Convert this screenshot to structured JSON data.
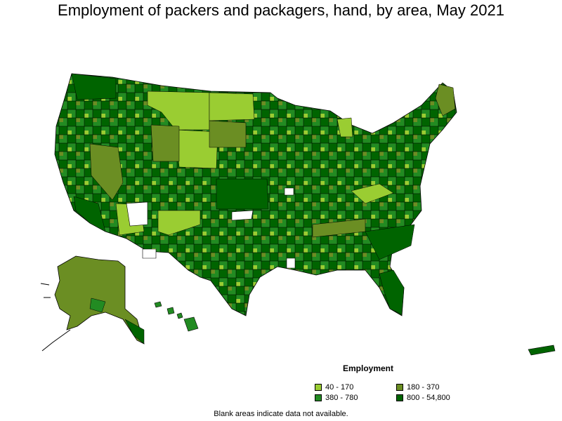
{
  "title": "Employment of packers and packagers, hand, by area, May 2021",
  "legend": {
    "title": "Employment",
    "items": [
      {
        "label": "40 - 170",
        "color": "#9acd32"
      },
      {
        "label": "180 - 370",
        "color": "#6b8e23"
      },
      {
        "label": "380 - 780",
        "color": "#228b22"
      },
      {
        "label": "800 - 54,800",
        "color": "#006400"
      }
    ]
  },
  "footnote": "Blank areas indicate data not available.",
  "colors": {
    "c1": "#9acd32",
    "c2": "#6b8e23",
    "c3": "#228b22",
    "c4": "#006400",
    "blank": "#ffffff",
    "border": "#000000"
  }
}
